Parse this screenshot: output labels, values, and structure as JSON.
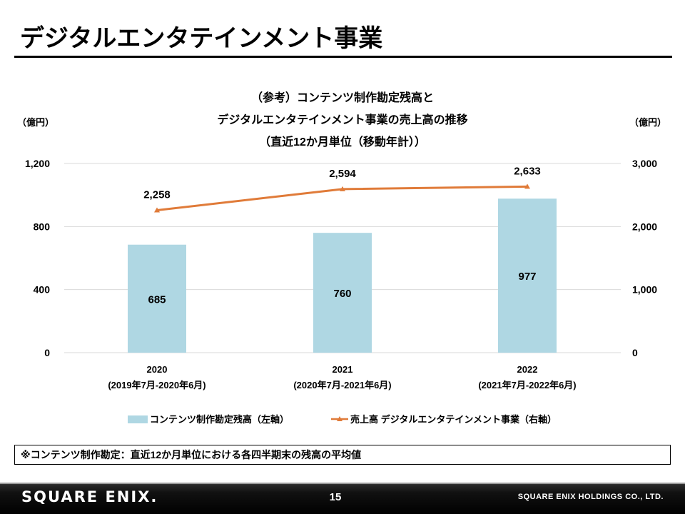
{
  "page": {
    "title": "デジタルエンタテインメント事業",
    "page_number": "15",
    "logo_text": "SQUARE ENIX.",
    "company": "SQUARE ENIX HOLDINGS CO., LTD.",
    "note": "※コンテンツ制作勘定：直近12か月単位における各四半期末の残高の平均値"
  },
  "chart_data": {
    "type": "bar",
    "title_lines": [
      "（参考）コンテンツ制作勘定残高と",
      "デジタルエンタテインメント事業の売上高の推移",
      "（直近12か月単位（移動年計））"
    ],
    "y_left_unit": "（億円）",
    "y_right_unit": "（億円）",
    "categories": [
      "2020",
      "2021",
      "2022"
    ],
    "category_sublabels": [
      "(2019年7月-2020年6月)",
      "(2020年7月-2021年6月)",
      "(2021年7月-2022年6月)"
    ],
    "y_left": {
      "min": 0,
      "max": 1200,
      "ticks": [
        0,
        400,
        800,
        1200
      ],
      "tick_labels": [
        "0",
        "400",
        "800",
        "1,200"
      ]
    },
    "y_right": {
      "min": 0,
      "max": 3000,
      "ticks": [
        0,
        1000,
        2000,
        3000
      ],
      "tick_labels": [
        "0",
        "1,000",
        "2,000",
        "3,000"
      ]
    },
    "series": [
      {
        "name": "コンテンツ制作勘定残高（左軸）",
        "type": "bar",
        "axis": "left",
        "color": "#afd7e3",
        "values": [
          685,
          760,
          977
        ],
        "value_labels": [
          "685",
          "760",
          "977"
        ]
      },
      {
        "name": "売上高 デジタルエンタテインメント事業（右軸）",
        "type": "line",
        "axis": "right",
        "color": "#e07b39",
        "marker": "triangle",
        "values": [
          2258,
          2594,
          2633
        ],
        "value_labels": [
          "2,258",
          "2,594",
          "2,633"
        ]
      }
    ],
    "grid": true,
    "legend_position": "bottom"
  }
}
